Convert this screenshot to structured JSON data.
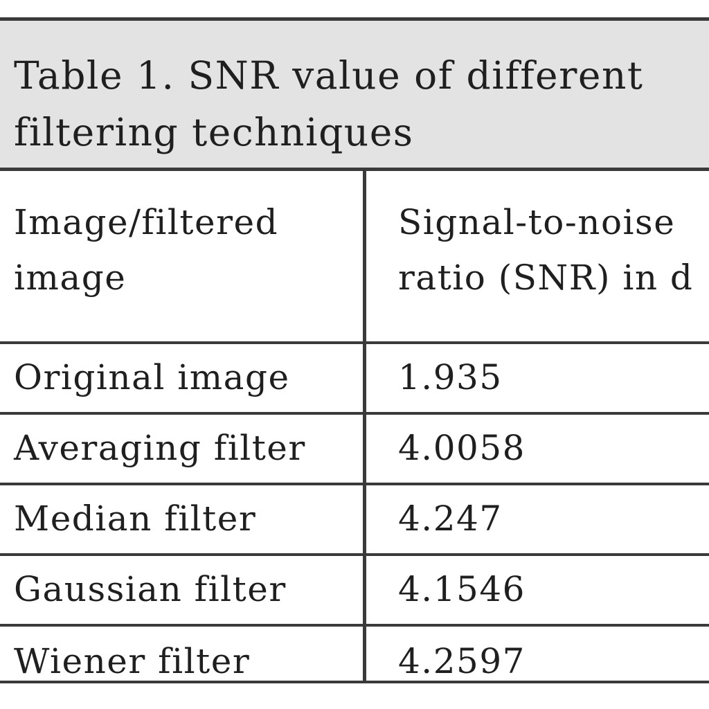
{
  "caption": "Table 1. SNR value of different\nfiltering techniques",
  "table": {
    "headers": [
      "Image/filtered\nimage",
      "Signal-to-noise\nratio (SNR) in d"
    ],
    "rows": [
      [
        "Original image",
        "1.935"
      ],
      [
        "Averaging filter",
        "4.0058"
      ],
      [
        "Median filter",
        "4.247"
      ],
      [
        "Gaussian filter",
        "4.1546"
      ],
      [
        "Wiener filter",
        "4.2597"
      ]
    ]
  }
}
